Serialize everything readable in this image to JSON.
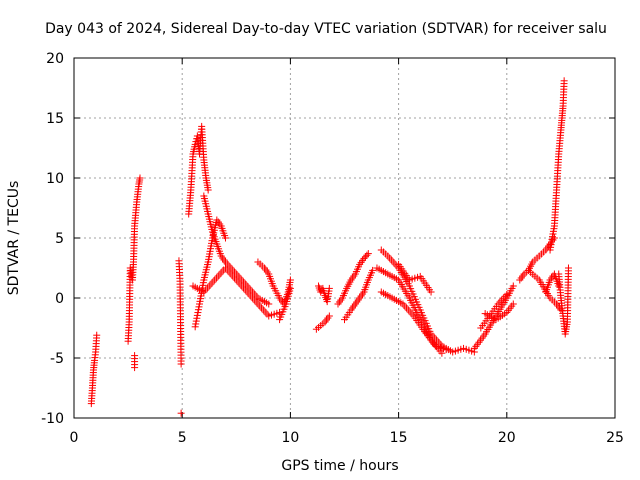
{
  "chart_data": {
    "type": "scatter",
    "title": "Day 043 of 2024, Sidereal Day-to-day VTEC variation (SDTVAR) for receiver salu",
    "xlabel": "GPS time / hours",
    "ylabel": "SDTVAR / TECUs",
    "xlim": [
      0,
      25
    ],
    "ylim": [
      -10,
      20
    ],
    "x_ticks": [
      0,
      5,
      10,
      15,
      20,
      25
    ],
    "y_ticks": [
      -10,
      -5,
      0,
      5,
      10,
      15,
      20
    ],
    "grid": true,
    "marker": "+",
    "color": "#ff0000",
    "segments": [
      {
        "x": [
          0.8,
          0.85,
          0.9,
          0.95,
          1.0,
          1.05
        ],
        "y": [
          -8.8,
          -7.5,
          -6.0,
          -5.2,
          -4.5,
          -3.1
        ]
      },
      {
        "x": [
          2.5,
          2.55,
          2.6,
          2.7,
          2.75,
          2.8,
          2.9,
          3.0,
          3.05
        ],
        "y": [
          -3.6,
          -2.0,
          2.5,
          1.5,
          3.0,
          6.0,
          8.0,
          9.5,
          10.0
        ]
      },
      {
        "x": [
          2.8,
          2.8
        ],
        "y": [
          -4.8,
          -5.8
        ]
      },
      {
        "x": [
          4.85,
          4.9,
          4.95
        ],
        "y": [
          3.1,
          1.4,
          -5.5
        ]
      },
      {
        "x": [
          4.95
        ],
        "y": [
          -9.6
        ]
      },
      {
        "x": [
          5.3,
          5.4,
          5.5,
          5.6,
          5.7,
          5.8,
          5.9,
          6.0,
          6.1,
          6.2
        ],
        "y": [
          7.0,
          9.0,
          12.0,
          12.8,
          13.5,
          12.0,
          14.3,
          11.5,
          10.0,
          9.0
        ]
      },
      {
        "x": [
          5.6,
          5.8,
          6.0,
          6.2,
          6.4,
          6.6,
          6.8,
          7.0
        ],
        "y": [
          -2.4,
          -0.5,
          1.5,
          3.0,
          5.0,
          6.5,
          6.0,
          5.0
        ]
      },
      {
        "x": [
          6.0,
          6.2,
          6.4,
          6.6,
          6.8,
          7.0,
          7.5,
          8.0,
          8.5,
          9.0
        ],
        "y": [
          8.5,
          7.0,
          5.5,
          4.5,
          3.5,
          3.0,
          2.0,
          1.0,
          0.0,
          -0.5
        ]
      },
      {
        "x": [
          5.5,
          6.0,
          6.5,
          7.0,
          7.5,
          8.0,
          8.5,
          9.0,
          9.5
        ],
        "y": [
          1.0,
          0.5,
          1.5,
          2.5,
          1.5,
          0.5,
          -0.5,
          -1.5,
          -1.2
        ]
      },
      {
        "x": [
          8.5,
          8.8,
          9.0,
          9.2,
          9.5,
          9.7,
          9.9,
          10.0
        ],
        "y": [
          3.0,
          2.5,
          2.0,
          1.0,
          0.0,
          -0.5,
          0.5,
          1.5
        ]
      },
      {
        "x": [
          9.5,
          9.8,
          10.0
        ],
        "y": [
          -1.8,
          -0.5,
          0.8
        ]
      },
      {
        "x": [
          11.3,
          11.4,
          11.5,
          11.6,
          11.7,
          11.8
        ],
        "y": [
          1.0,
          0.5,
          0.8,
          0.2,
          -0.3,
          0.8
        ]
      },
      {
        "x": [
          11.2,
          11.4,
          11.6,
          11.8
        ],
        "y": [
          -2.6,
          -2.3,
          -2.0,
          -1.5
        ]
      },
      {
        "x": [
          12.2,
          12.4,
          12.6,
          12.8,
          13.0,
          13.2,
          13.4,
          13.6
        ],
        "y": [
          -0.5,
          0.0,
          0.8,
          1.5,
          2.0,
          2.8,
          3.3,
          3.7
        ]
      },
      {
        "x": [
          12.5,
          12.8,
          13.0,
          13.2,
          13.4,
          13.6,
          13.8
        ],
        "y": [
          -1.8,
          -1.0,
          -0.5,
          0.0,
          0.5,
          1.5,
          2.3
        ]
      },
      {
        "x": [
          14.2,
          14.5,
          15.0,
          15.5,
          16.0,
          16.5,
          17.0,
          17.5,
          18.0,
          18.5
        ],
        "y": [
          4.0,
          3.5,
          2.5,
          1.0,
          -1.0,
          -3.0,
          -4.0,
          -4.5,
          -4.2,
          -4.5
        ]
      },
      {
        "x": [
          14.0,
          14.5,
          15.0,
          15.5,
          16.0,
          16.5,
          17.0
        ],
        "y": [
          2.5,
          2.0,
          1.5,
          0.0,
          -1.8,
          -3.5,
          -4.6
        ]
      },
      {
        "x": [
          14.2,
          14.7,
          15.2,
          15.7,
          16.2,
          16.7,
          17.2
        ],
        "y": [
          0.5,
          0.0,
          -0.5,
          -1.5,
          -2.8,
          -4.0,
          -4.3
        ]
      },
      {
        "x": [
          15.0,
          15.5,
          16.0,
          16.5
        ],
        "y": [
          2.8,
          1.5,
          1.8,
          0.5
        ]
      },
      {
        "x": [
          18.5,
          19.0,
          19.5,
          20.0,
          20.3
        ],
        "y": [
          -4.2,
          -3.0,
          -1.5,
          0.0,
          1.0
        ]
      },
      {
        "x": [
          18.8,
          19.2,
          19.6,
          20.0
        ],
        "y": [
          -2.5,
          -1.5,
          -0.5,
          0.3
        ]
      },
      {
        "x": [
          19.0,
          19.5,
          20.0,
          20.3
        ],
        "y": [
          -1.3,
          -1.8,
          -1.2,
          -0.5
        ]
      },
      {
        "x": [
          20.6,
          20.8,
          21.0,
          21.2,
          21.5,
          21.8,
          22.0,
          22.2
        ],
        "y": [
          1.5,
          2.0,
          2.3,
          3.0,
          3.5,
          4.0,
          4.5,
          5.0
        ]
      },
      {
        "x": [
          21.0,
          21.5,
          22.0,
          22.3,
          22.5
        ],
        "y": [
          2.3,
          1.5,
          0.0,
          -0.5,
          -1.0
        ]
      },
      {
        "x": [
          22.0,
          22.2,
          22.3,
          22.4,
          22.5,
          22.55,
          22.6,
          22.65
        ],
        "y": [
          4.0,
          6.0,
          9.0,
          12.0,
          14.0,
          15.0,
          16.0,
          18.1
        ]
      },
      {
        "x": [
          22.4,
          22.5,
          22.6,
          22.7,
          22.8,
          22.85
        ],
        "y": [
          2.0,
          0.0,
          -1.5,
          -3.0,
          -2.0,
          2.5
        ]
      },
      {
        "x": [
          21.8,
          22.0,
          22.2,
          22.4
        ],
        "y": [
          0.5,
          1.5,
          2.0,
          1.0
        ]
      }
    ]
  }
}
